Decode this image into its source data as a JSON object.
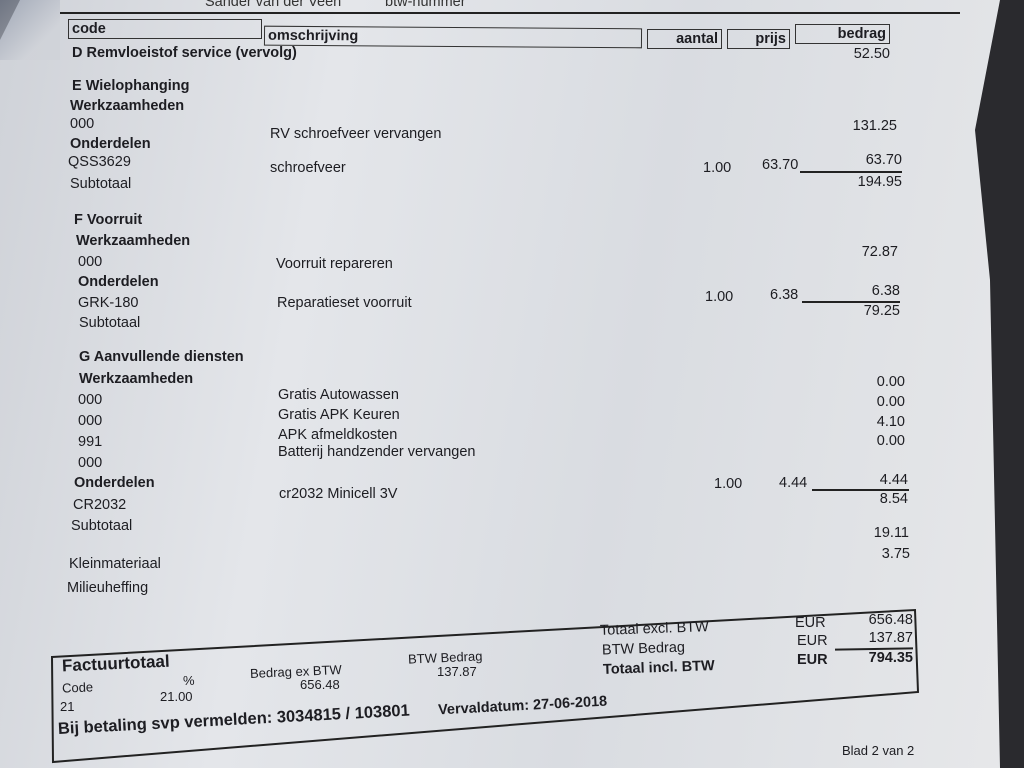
{
  "top": {
    "name": "Sander van der Veen",
    "vat_label": "btw-nummer"
  },
  "headers": {
    "code": "code",
    "description": "omschrijving",
    "qty": "aantal",
    "price": "prijs",
    "amount": "bedrag"
  },
  "sectionD": {
    "title": "D Remvloeistof service (vervolg)",
    "amount": "52.50"
  },
  "sectionE": {
    "title": "E Wielophanging",
    "labor_label": "Werkzaamheden",
    "labor": [
      {
        "code": "000",
        "description": "RV schroefveer vervangen",
        "amount": "131.25"
      }
    ],
    "parts_label": "Onderdelen",
    "parts": [
      {
        "code": "QSS3629",
        "description": "schroefveer",
        "qty": "1.00",
        "price": "63.70",
        "amount": "63.70"
      }
    ],
    "subtotal_label": "Subtotaal",
    "subtotal": "194.95"
  },
  "sectionF": {
    "title": "F Voorruit",
    "labor_label": "Werkzaamheden",
    "labor": [
      {
        "code": "000",
        "description": "Voorruit repareren",
        "amount": "72.87"
      }
    ],
    "parts_label": "Onderdelen",
    "parts": [
      {
        "code": "GRK-180",
        "description": "Reparatieset voorruit",
        "qty": "1.00",
        "price": "6.38",
        "amount": "6.38"
      }
    ],
    "subtotal_label": "Subtotaal",
    "subtotal": "79.25"
  },
  "sectionG": {
    "title": "G Aanvullende diensten",
    "labor_label": "Werkzaamheden",
    "labor": [
      {
        "code": "000",
        "description": "Gratis Autowassen",
        "amount": "0.00"
      },
      {
        "code": "000",
        "description": "Gratis APK Keuren",
        "amount": "0.00"
      },
      {
        "code": "991",
        "description": "APK afmeldkosten",
        "amount": "4.10"
      },
      {
        "code": "000",
        "description": "Batterij handzender vervangen",
        "amount": "0.00"
      }
    ],
    "parts_label": "Onderdelen",
    "parts": [
      {
        "code": "CR2032",
        "description": "cr2032 Minicell 3V",
        "qty": "1.00",
        "price": "4.44",
        "amount": "4.44"
      }
    ],
    "subtotal_label": "Subtotaal",
    "subtotal": "8.54"
  },
  "extras": [
    {
      "label": "Kleinmateriaal",
      "amount": "19.11"
    },
    {
      "label": "Milieuheffing",
      "amount": "3.75"
    }
  ],
  "totals": {
    "title": "Factuurtotaal",
    "code_label": "Code",
    "pct_label": "%",
    "code": "21",
    "pct": "21.00",
    "ex_label": "Bedrag ex BTW",
    "ex_value": "656.48",
    "vat_label": "BTW Bedrag",
    "vat_value": "137.87",
    "summary": [
      {
        "label": "Totaal excl. BTW",
        "currency": "EUR",
        "amount": "656.48"
      },
      {
        "label": "BTW Bedrag",
        "currency": "EUR",
        "amount": "137.87"
      },
      {
        "label": "Totaal incl. BTW",
        "currency": "EUR",
        "amount": "794.35"
      }
    ],
    "payment_ref": "Bij betaling svp vermelden: 3034815 / 103801",
    "due_date": "Vervaldatum: 27-06-2018"
  },
  "page": "Blad 2 van 2"
}
